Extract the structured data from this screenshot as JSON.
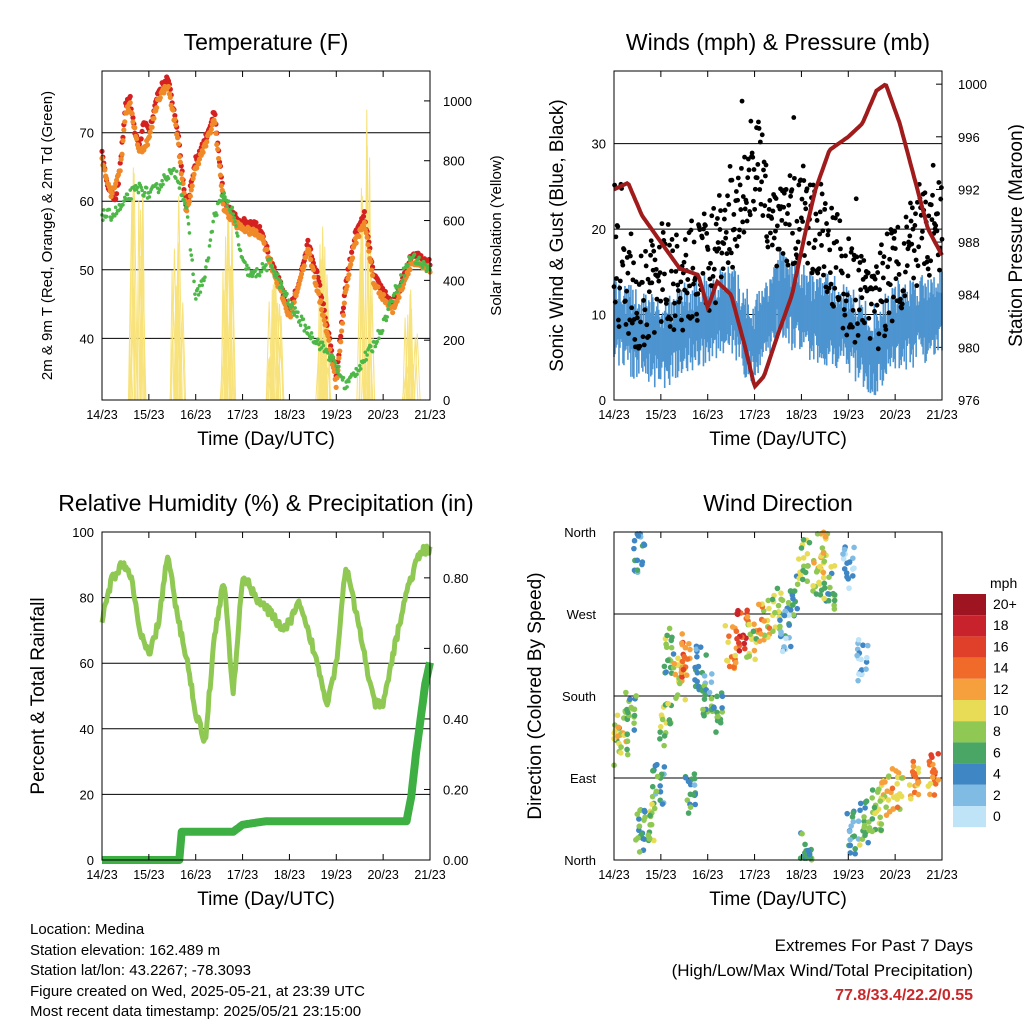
{
  "colors": {
    "temp2m": "#d42020",
    "temp9m": "#f08a28",
    "dewpoint": "#4db848",
    "solar": "#f8e27a",
    "wind": "#4d94d0",
    "gust": "#000000",
    "pressure": "#a01c1c",
    "rh": "#8fc853",
    "precip": "#3eb043",
    "extremes": "#c8282a"
  },
  "chart_data": [
    {
      "id": "temperature",
      "type": "line",
      "title": "Temperature (F)",
      "xlabel": "Time (Day/UTC)",
      "ylabel": "2m & 9m T (Red, Orange) & 2m Td (Green)",
      "ylabel_right": "Solar Insolation (Yellow)",
      "x_ticks": [
        "14/23",
        "15/23",
        "16/23",
        "17/23",
        "18/23",
        "19/23",
        "20/23",
        "21/23"
      ],
      "ylim": [
        31,
        79
      ],
      "y_ticks": [
        40,
        50,
        60,
        70
      ],
      "ylim_right": [
        0,
        1100
      ],
      "y_ticks_right": [
        0,
        200,
        400,
        600,
        800,
        1000
      ],
      "grid": true,
      "series": [
        {
          "color_key": "temp2m",
          "x": [
            0,
            0.1,
            0.2,
            0.3,
            0.4,
            0.5,
            0.6,
            0.7,
            0.8,
            0.9,
            1.0,
            1.2,
            1.4,
            1.6,
            1.8,
            2.0,
            2.2,
            2.4,
            2.6,
            2.8,
            3.0,
            3.2,
            3.4,
            3.6,
            3.8,
            4.0,
            4.2,
            4.4,
            4.6,
            4.8,
            5.0,
            5.2,
            5.4,
            5.6,
            5.8,
            6.0,
            6.2,
            6.4,
            6.6,
            6.8,
            7.0
          ],
          "y": [
            67,
            63,
            61,
            60,
            66,
            74,
            75,
            70,
            68,
            72,
            70,
            76,
            78,
            71,
            59,
            66,
            69,
            73,
            60,
            58,
            57,
            57,
            56,
            51,
            48,
            44,
            48,
            54,
            49,
            42,
            34,
            48,
            55,
            58,
            49,
            47,
            45,
            48,
            52,
            52,
            51
          ]
        },
        {
          "color_key": "temp9m",
          "x": [
            0,
            0.2,
            0.4,
            0.5,
            0.6,
            0.8,
            1.0,
            1.2,
            1.4,
            1.6,
            1.8,
            2.0,
            2.2,
            2.4,
            2.6,
            2.8,
            3.0,
            3.4,
            3.8,
            4.0,
            4.4,
            4.8,
            5.0,
            5.2,
            5.4,
            5.6,
            5.8,
            6.2,
            6.6,
            7.0
          ],
          "y": [
            66,
            61,
            65,
            73,
            74,
            67,
            69,
            75,
            77,
            70,
            58,
            65,
            68,
            72,
            59,
            57,
            56,
            55,
            47,
            43,
            53,
            41,
            33,
            47,
            54,
            57,
            48,
            44,
            51,
            50
          ]
        },
        {
          "color_key": "dewpoint",
          "x": [
            0,
            0.2,
            0.4,
            0.6,
            0.8,
            1.0,
            1.2,
            1.4,
            1.6,
            1.8,
            2.0,
            2.2,
            2.4,
            2.6,
            2.8,
            3.0,
            3.2,
            3.4,
            3.6,
            4.0,
            4.4,
            4.8,
            5.0,
            5.2,
            5.4,
            5.6,
            5.8,
            6.0,
            6.2,
            6.4,
            6.6,
            6.8,
            7.0
          ],
          "y": [
            58,
            58,
            59,
            61,
            62,
            61,
            62,
            64,
            64,
            59,
            46,
            49,
            58,
            61,
            58,
            51,
            49,
            50,
            51,
            45,
            41,
            38,
            36,
            33,
            35,
            37,
            39,
            42,
            46,
            49,
            52,
            51,
            50
          ]
        }
      ],
      "solar": {
        "color_key": "solar",
        "peaks": [
          [
            0.75,
            1020
          ],
          [
            1.6,
            800
          ],
          [
            2.7,
            730
          ],
          [
            3.7,
            520
          ],
          [
            4.7,
            630
          ],
          [
            5.65,
            1060
          ],
          [
            6.6,
            420
          ]
        ]
      }
    },
    {
      "id": "winds",
      "type": "scatter",
      "title": "Winds (mph) & Pressure (mb)",
      "xlabel": "Time (Day/UTC)",
      "ylabel": "Sonic Wind & Gust (Blue, Black)",
      "ylabel_right": "Station Pressure (Maroon)",
      "x_ticks": [
        "14/23",
        "15/23",
        "16/23",
        "17/23",
        "18/23",
        "19/23",
        "20/23",
        "21/23"
      ],
      "ylim": [
        0,
        38.5
      ],
      "y_ticks": [
        0,
        10,
        20,
        30
      ],
      "ylim_right": [
        976,
        1001
      ],
      "y_ticks_right": [
        976,
        980,
        984,
        988,
        992,
        996,
        1000
      ],
      "grid": true,
      "wind_envelope": {
        "x": [
          0,
          0.5,
          1.0,
          1.5,
          2.0,
          2.5,
          3.0,
          3.5,
          4.0,
          4.5,
          5.0,
          5.5,
          6.0,
          6.5,
          7.0
        ],
        "y": [
          11,
          9,
          8,
          10,
          11,
          12,
          8,
          14,
          12,
          11,
          10,
          7,
          10,
          11,
          12
        ]
      },
      "gust_envelope": {
        "x": [
          0,
          0.5,
          1.0,
          1.5,
          2.0,
          2.5,
          3.0,
          3.5,
          4.0,
          4.5,
          5.0,
          5.5,
          6.0,
          6.5,
          7.0
        ],
        "y": [
          15,
          11,
          14,
          14,
          16,
          20,
          28,
          20,
          22,
          19,
          13,
          10,
          16,
          18,
          20
        ]
      },
      "pressure": {
        "color_key": "pressure",
        "x": [
          0,
          0.3,
          0.6,
          1.0,
          1.4,
          1.8,
          2.0,
          2.2,
          2.5,
          2.8,
          3.0,
          3.2,
          3.5,
          3.8,
          4.1,
          4.3,
          4.6,
          5.0,
          5.3,
          5.6,
          5.8,
          6.1,
          6.4,
          6.7,
          7.0
        ],
        "y": [
          992,
          992.5,
          990,
          988,
          986,
          985.5,
          983,
          985,
          984,
          980,
          977,
          977.8,
          981,
          984,
          989,
          992,
          995,
          996,
          997,
          999.5,
          1000,
          997,
          993,
          989,
          987
        ]
      }
    },
    {
      "id": "humidity",
      "type": "line",
      "title": "Relative Humidity (%) & Precipitation (in)",
      "xlabel": "Time (Day/UTC)",
      "ylabel": "Percent & Total Rainfall",
      "x_ticks": [
        "14/23",
        "15/23",
        "16/23",
        "17/23",
        "18/23",
        "19/23",
        "20/23",
        "21/23"
      ],
      "ylim": [
        0,
        100
      ],
      "y_ticks": [
        0,
        20,
        40,
        60,
        80,
        100
      ],
      "ylim_right": [
        0,
        0.93
      ],
      "y_ticks_right": [
        "0.00",
        "0.20",
        "0.40",
        "0.60",
        "0.80"
      ],
      "grid": true,
      "series": [
        {
          "color_key": "rh",
          "x": [
            0,
            0.2,
            0.4,
            0.6,
            0.8,
            1.0,
            1.2,
            1.4,
            1.6,
            1.8,
            2.0,
            2.2,
            2.4,
            2.6,
            2.8,
            3.0,
            3.3,
            3.6,
            3.9,
            4.2,
            4.5,
            4.8,
            5.0,
            5.2,
            5.5,
            5.8,
            6.0,
            6.2,
            6.5,
            6.8,
            7.0
          ],
          "y": [
            73,
            85,
            90,
            88,
            70,
            62,
            72,
            93,
            75,
            62,
            45,
            36,
            68,
            86,
            50,
            87,
            80,
            75,
            70,
            78,
            65,
            48,
            60,
            90,
            70,
            48,
            47,
            62,
            82,
            94,
            95
          ]
        },
        {
          "color_key": "precip",
          "x": [
            0,
            1.0,
            1.65,
            1.7,
            2.0,
            2.8,
            3.0,
            3.5,
            4.0,
            5.0,
            6.0,
            6.5,
            6.6,
            6.7,
            6.8,
            6.9,
            7.0
          ],
          "y": [
            0,
            0,
            0,
            0.08,
            0.08,
            0.08,
            0.1,
            0.11,
            0.11,
            0.11,
            0.11,
            0.11,
            0.18,
            0.3,
            0.4,
            0.5,
            0.56
          ]
        }
      ]
    },
    {
      "id": "direction",
      "type": "scatter",
      "title": "Wind Direction",
      "xlabel": "Time (Day/UTC)",
      "ylabel": "Direction (Colored By Speed)",
      "x_ticks": [
        "14/23",
        "15/23",
        "16/23",
        "17/23",
        "18/23",
        "19/23",
        "20/23",
        "21/23"
      ],
      "y_ticks": [
        "North",
        "East",
        "South",
        "West",
        "North"
      ],
      "ylim": [
        0,
        360
      ],
      "grid": true,
      "legend": {
        "title": "mph",
        "placement": "right",
        "labels": [
          "20+",
          "18",
          "16",
          "14",
          "12",
          "10",
          "8",
          "6",
          "4",
          "2",
          "0"
        ],
        "colors": [
          "#9e1420",
          "#c8232c",
          "#e0402a",
          "#f06a2a",
          "#f6a03d",
          "#e8dc56",
          "#8fc853",
          "#4aa665",
          "#3f86c4",
          "#80bbe4",
          "#bfe3f7"
        ]
      },
      "clusters": [
        {
          "x": 0.0,
          "dir": 127,
          "spd": 9
        },
        {
          "x": 0.2,
          "dir": 140,
          "spd": 9
        },
        {
          "x": 0.35,
          "dir": 160,
          "spd": 7
        },
        {
          "x": 0.55,
          "dir": 340,
          "spd": 3
        },
        {
          "x": 0.55,
          "dir": 30,
          "spd": 6
        },
        {
          "x": 0.75,
          "dir": 45,
          "spd": 7
        },
        {
          "x": 0.95,
          "dir": 80,
          "spd": 5
        },
        {
          "x": 1.1,
          "dir": 150,
          "spd": 8
        },
        {
          "x": 1.2,
          "dir": 230,
          "spd": 7
        },
        {
          "x": 1.4,
          "dir": 200,
          "spd": 10
        },
        {
          "x": 1.55,
          "dir": 225,
          "spd": 14
        },
        {
          "x": 1.65,
          "dir": 70,
          "spd": 5
        },
        {
          "x": 1.85,
          "dir": 210,
          "spd": 4
        },
        {
          "x": 2.0,
          "dir": 180,
          "spd": 5
        },
        {
          "x": 2.2,
          "dir": 160,
          "spd": 6
        },
        {
          "x": 2.5,
          "dir": 235,
          "spd": 12
        },
        {
          "x": 2.75,
          "dir": 250,
          "spd": 16
        },
        {
          "x": 2.95,
          "dir": 245,
          "spd": 9
        },
        {
          "x": 3.2,
          "dir": 262,
          "spd": 11
        },
        {
          "x": 3.5,
          "dir": 275,
          "spd": 8
        },
        {
          "x": 3.8,
          "dir": 292,
          "spd": 6
        },
        {
          "x": 3.65,
          "dir": 250,
          "spd": 3
        },
        {
          "x": 4.05,
          "dir": 330,
          "spd": 8
        },
        {
          "x": 4.35,
          "dir": 310,
          "spd": 9
        },
        {
          "x": 4.6,
          "dir": 300,
          "spd": 7
        },
        {
          "x": 4.1,
          "dir": 10,
          "spd": 6
        },
        {
          "x": 4.45,
          "dir": 340,
          "spd": 10
        },
        {
          "x": 5.0,
          "dir": 320,
          "spd": 2
        },
        {
          "x": 5.3,
          "dir": 220,
          "spd": 1
        },
        {
          "x": 5.1,
          "dir": 30,
          "spd": 4
        },
        {
          "x": 5.35,
          "dir": 40,
          "spd": 7
        },
        {
          "x": 5.6,
          "dir": 55,
          "spd": 8
        },
        {
          "x": 5.8,
          "dir": 70,
          "spd": 10
        },
        {
          "x": 6.05,
          "dir": 80,
          "spd": 11
        },
        {
          "x": 6.4,
          "dir": 90,
          "spd": 12
        },
        {
          "x": 6.8,
          "dir": 93,
          "spd": 13
        }
      ]
    }
  ],
  "footer": {
    "location": "Location: Medina",
    "elevation": "Station elevation: 162.489 m",
    "latlon": "Station lat/lon: 43.2267; -78.3093",
    "created": "Figure created on Wed, 2025-05-21, at 23:39 UTC",
    "recent": "Most recent data timestamp: 2025/05/21 23:15:00"
  },
  "extremes": {
    "title": "Extremes For Past 7 Days",
    "subtitle": "(High/Low/Max Wind/Total Precipitation)",
    "values": "77.8/33.4/22.2/0.55"
  }
}
